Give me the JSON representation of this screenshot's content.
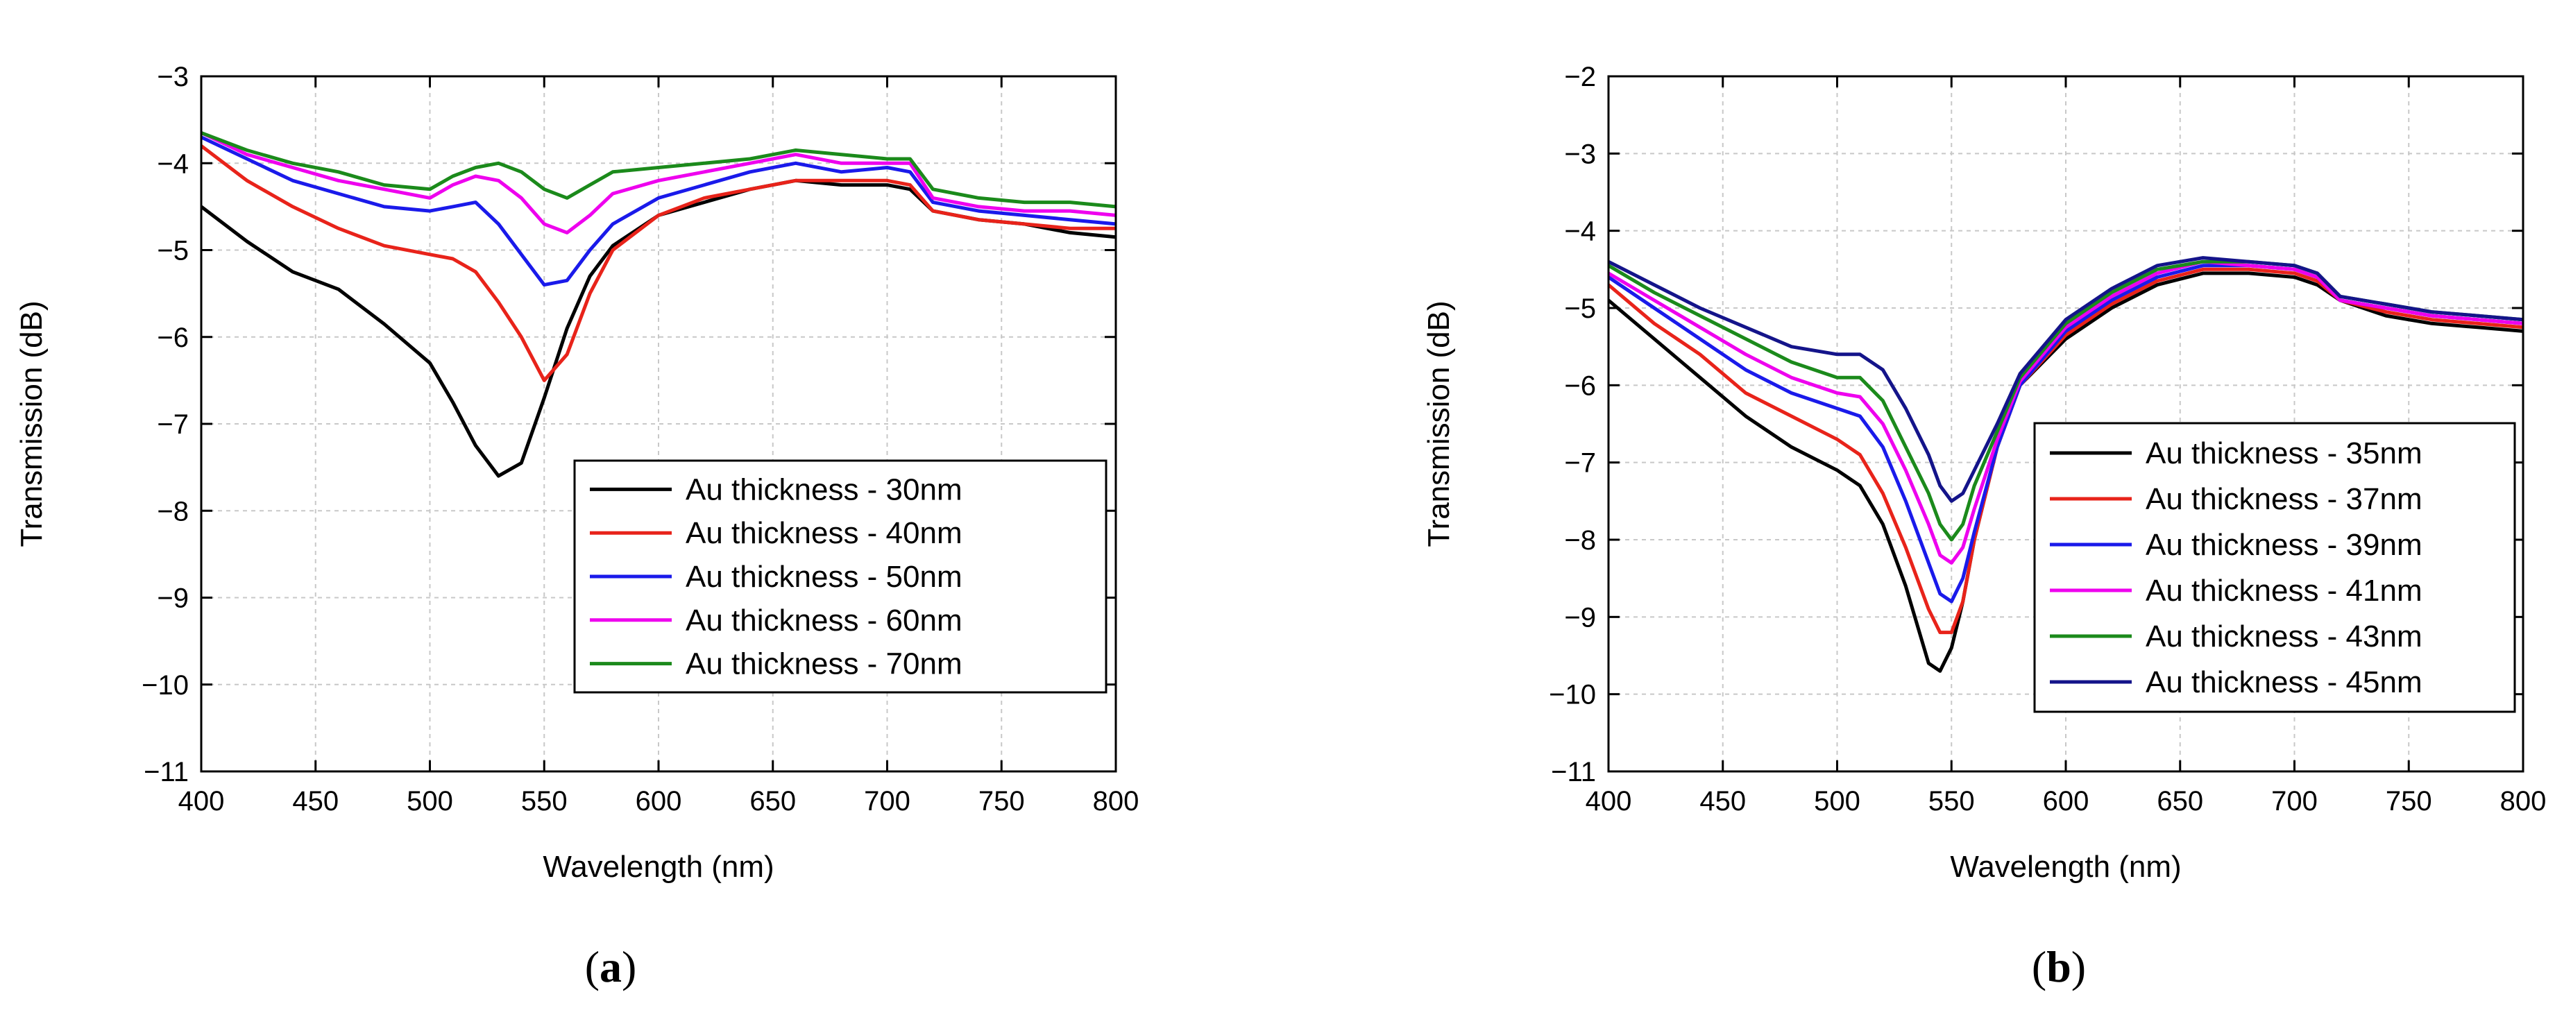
{
  "chart_data": [
    {
      "type": "line",
      "panel_label": "a",
      "title": "",
      "xlabel": "Wavelength (nm)",
      "ylabel": "Transmission (dB)",
      "xlim": [
        400,
        800
      ],
      "ylim": [
        -11,
        -3
      ],
      "xticks": [
        400,
        450,
        500,
        550,
        600,
        650,
        700,
        750,
        800
      ],
      "yticks": [
        -11,
        -10,
        -9,
        -8,
        -7,
        -6,
        -5,
        -4,
        -3
      ],
      "grid": true,
      "legend_position": "lower-right",
      "x": [
        400,
        420,
        440,
        460,
        480,
        500,
        510,
        520,
        530,
        540,
        550,
        560,
        570,
        580,
        600,
        620,
        640,
        660,
        680,
        700,
        710,
        720,
        740,
        760,
        780,
        800
      ],
      "series": [
        {
          "name": "Au thickness - 30nm",
          "color": "#000000",
          "values": [
            -4.5,
            -4.9,
            -5.25,
            -5.45,
            -5.85,
            -6.3,
            -6.75,
            -7.25,
            -7.6,
            -7.45,
            -6.7,
            -5.9,
            -5.3,
            -4.95,
            -4.6,
            -4.45,
            -4.3,
            -4.2,
            -4.25,
            -4.25,
            -4.3,
            -4.55,
            -4.65,
            -4.7,
            -4.8,
            -4.85
          ]
        },
        {
          "name": "Au thickness - 40nm",
          "color": "#e8231a",
          "values": [
            -3.8,
            -4.2,
            -4.5,
            -4.75,
            -4.95,
            -5.05,
            -5.1,
            -5.25,
            -5.6,
            -6.0,
            -6.5,
            -6.2,
            -5.5,
            -5.0,
            -4.6,
            -4.4,
            -4.3,
            -4.2,
            -4.2,
            -4.2,
            -4.25,
            -4.55,
            -4.65,
            -4.7,
            -4.75,
            -4.75
          ]
        },
        {
          "name": "Au thickness - 50nm",
          "color": "#1a1aea",
          "values": [
            -3.7,
            -3.95,
            -4.2,
            -4.35,
            -4.5,
            -4.55,
            -4.5,
            -4.45,
            -4.7,
            -5.05,
            -5.4,
            -5.35,
            -5.0,
            -4.7,
            -4.4,
            -4.25,
            -4.1,
            -4.0,
            -4.1,
            -4.05,
            -4.1,
            -4.45,
            -4.55,
            -4.6,
            -4.65,
            -4.7
          ]
        },
        {
          "name": "Au thickness - 60nm",
          "color": "#ee00ee",
          "values": [
            -3.65,
            -3.9,
            -4.05,
            -4.2,
            -4.3,
            -4.4,
            -4.25,
            -4.15,
            -4.2,
            -4.4,
            -4.7,
            -4.8,
            -4.6,
            -4.35,
            -4.2,
            -4.1,
            -4.0,
            -3.9,
            -4.0,
            -4.0,
            -4.0,
            -4.4,
            -4.5,
            -4.55,
            -4.55,
            -4.6
          ]
        },
        {
          "name": "Au thickness - 70nm",
          "color": "#1b8a1b",
          "values": [
            -3.65,
            -3.85,
            -4.0,
            -4.1,
            -4.25,
            -4.3,
            -4.15,
            -4.05,
            -4.0,
            -4.1,
            -4.3,
            -4.4,
            -4.25,
            -4.1,
            -4.05,
            -4.0,
            -3.95,
            -3.85,
            -3.9,
            -3.95,
            -3.95,
            -4.3,
            -4.4,
            -4.45,
            -4.45,
            -4.5
          ]
        }
      ]
    },
    {
      "type": "line",
      "panel_label": "b",
      "title": "",
      "xlabel": "Wavelength (nm)",
      "ylabel": "Transmission (dB)",
      "xlim": [
        400,
        800
      ],
      "ylim": [
        -11,
        -2
      ],
      "xticks": [
        400,
        450,
        500,
        550,
        600,
        650,
        700,
        750,
        800
      ],
      "yticks": [
        -11,
        -10,
        -9,
        -8,
        -7,
        -6,
        -5,
        -4,
        -3,
        -2
      ],
      "grid": true,
      "legend_position": "lower-right",
      "x": [
        400,
        420,
        440,
        460,
        480,
        500,
        510,
        520,
        530,
        540,
        545,
        550,
        555,
        560,
        570,
        580,
        600,
        620,
        640,
        660,
        680,
        700,
        710,
        720,
        740,
        760,
        780,
        800
      ],
      "series": [
        {
          "name": "Au thickness - 35nm",
          "color": "#000000",
          "values": [
            -4.9,
            -5.4,
            -5.9,
            -6.4,
            -6.8,
            -7.1,
            -7.3,
            -7.8,
            -8.6,
            -9.6,
            -9.7,
            -9.4,
            -8.8,
            -8.0,
            -6.8,
            -6.0,
            -5.4,
            -5.0,
            -4.7,
            -4.55,
            -4.55,
            -4.6,
            -4.7,
            -4.9,
            -5.1,
            -5.2,
            -5.25,
            -5.3
          ]
        },
        {
          "name": "Au thickness - 37nm",
          "color": "#e8231a",
          "values": [
            -4.7,
            -5.2,
            -5.6,
            -6.1,
            -6.4,
            -6.7,
            -6.9,
            -7.4,
            -8.1,
            -8.9,
            -9.2,
            -9.2,
            -8.8,
            -8.0,
            -6.8,
            -6.0,
            -5.35,
            -4.95,
            -4.65,
            -4.5,
            -4.5,
            -4.55,
            -4.65,
            -4.9,
            -5.05,
            -5.15,
            -5.2,
            -5.25
          ]
        },
        {
          "name": "Au thickness - 39nm",
          "color": "#1a1aea",
          "values": [
            -4.6,
            -5.0,
            -5.4,
            -5.8,
            -6.1,
            -6.3,
            -6.4,
            -6.8,
            -7.5,
            -8.3,
            -8.7,
            -8.8,
            -8.5,
            -7.9,
            -6.8,
            -6.0,
            -5.3,
            -4.9,
            -4.6,
            -4.45,
            -4.45,
            -4.5,
            -4.6,
            -4.9,
            -5.0,
            -5.1,
            -5.15,
            -5.2
          ]
        },
        {
          "name": "Au thickness - 41nm",
          "color": "#ee00ee",
          "values": [
            -4.55,
            -4.9,
            -5.25,
            -5.6,
            -5.9,
            -6.1,
            -6.15,
            -6.5,
            -7.1,
            -7.8,
            -8.2,
            -8.3,
            -8.1,
            -7.6,
            -6.7,
            -5.95,
            -5.25,
            -4.85,
            -4.55,
            -4.4,
            -4.45,
            -4.5,
            -4.6,
            -4.9,
            -5.0,
            -5.1,
            -5.15,
            -5.2
          ]
        },
        {
          "name": "Au thickness - 43nm",
          "color": "#1b8a1b",
          "values": [
            -4.45,
            -4.8,
            -5.1,
            -5.4,
            -5.7,
            -5.9,
            -5.9,
            -6.2,
            -6.8,
            -7.4,
            -7.8,
            -8.0,
            -7.8,
            -7.3,
            -6.6,
            -5.9,
            -5.2,
            -4.8,
            -4.5,
            -4.4,
            -4.4,
            -4.45,
            -4.55,
            -4.85,
            -4.95,
            -5.05,
            -5.1,
            -5.15
          ]
        },
        {
          "name": "Au thickness - 45nm",
          "color": "#14148a",
          "values": [
            -4.4,
            -4.7,
            -5.0,
            -5.25,
            -5.5,
            -5.6,
            -5.6,
            -5.8,
            -6.3,
            -6.9,
            -7.3,
            -7.5,
            -7.4,
            -7.1,
            -6.5,
            -5.85,
            -5.15,
            -4.75,
            -4.45,
            -4.35,
            -4.4,
            -4.45,
            -4.55,
            -4.85,
            -4.95,
            -5.05,
            -5.1,
            -5.15
          ]
        }
      ]
    }
  ]
}
